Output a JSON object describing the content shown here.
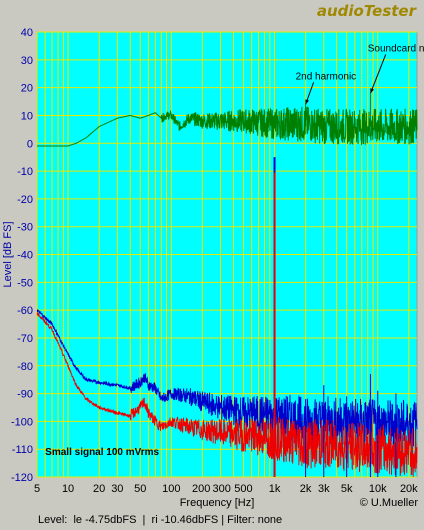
{
  "app": {
    "brand": "audioTester"
  },
  "status": {
    "text": "Level:  le -4.75dbFS  |  ri -10.46dbFS | Filter: none"
  },
  "chart_data": {
    "type": "line",
    "title": "",
    "xlabel": "Frequency [Hz]",
    "ylabel": "Level [dB FS]",
    "x_scale": "log",
    "xlim": [
      5,
      24000
    ],
    "ylim": [
      -120,
      40
    ],
    "grid": true,
    "y_ticks": [
      40,
      30,
      20,
      10,
      0,
      -10,
      -20,
      -30,
      -40,
      -50,
      -60,
      -70,
      -80,
      -90,
      -100,
      -110,
      -120
    ],
    "x_ticks": [
      {
        "value": 5,
        "label": "5"
      },
      {
        "value": 10,
        "label": "10"
      },
      {
        "value": 20,
        "label": "20"
      },
      {
        "value": 30,
        "label": "30"
      },
      {
        "value": 50,
        "label": "50"
      },
      {
        "value": 100,
        "label": "100"
      },
      {
        "value": 200,
        "label": "200"
      },
      {
        "value": 300,
        "label": "300"
      },
      {
        "value": 500,
        "label": "500"
      },
      {
        "value": 1000,
        "label": "1k"
      },
      {
        "value": 2000,
        "label": "2k"
      },
      {
        "value": 3000,
        "label": "3k"
      },
      {
        "value": 5000,
        "label": "5k"
      },
      {
        "value": 10000,
        "label": "10k"
      },
      {
        "value": 20000,
        "label": "20k"
      }
    ],
    "annotations": [
      {
        "text": "Soundcard nonlinearity",
        "x": 8000,
        "y": 33,
        "arrow_to": [
          8500,
          18
        ]
      },
      {
        "text": "2nd harmonic",
        "x": 1600,
        "y": 23,
        "arrow_to": [
          2000,
          14
        ]
      },
      {
        "text": "Small signal  100 mVrms",
        "x": 6,
        "y": -112
      }
    ],
    "copyright": "© U.Mueller",
    "series": [
      {
        "color": "#008000",
        "x": [
          5,
          8,
          10,
          12,
          15,
          20,
          30,
          40,
          50,
          60,
          70,
          80,
          90,
          100,
          120,
          150,
          200,
          300,
          500,
          1000,
          2000,
          3000,
          5000,
          10000,
          20000
        ],
        "y": [
          -1,
          -1,
          -1,
          0,
          2,
          6,
          9,
          10,
          9,
          10,
          11,
          9,
          10,
          10,
          6,
          9,
          8,
          8,
          8,
          7,
          7,
          6,
          6,
          6,
          6
        ]
      },
      {
        "color": "#0000cc",
        "x": [
          5,
          7,
          10,
          12,
          15,
          20,
          30,
          40,
          50,
          55,
          60,
          70,
          80,
          100,
          150,
          200,
          300,
          500,
          1000,
          2000,
          3000,
          5000,
          10000,
          20000
        ],
        "y": [
          -60,
          -65,
          -76,
          -81,
          -85,
          -86,
          -87,
          -88,
          -86,
          -84,
          -87,
          -88,
          -92,
          -90,
          -91,
          -93,
          -95,
          -97,
          -98,
          -100,
          -100,
          -100,
          -101,
          -101
        ]
      },
      {
        "color": "#ee0000",
        "x": [
          5,
          7,
          10,
          12,
          15,
          20,
          30,
          40,
          50,
          55,
          60,
          70,
          80,
          100,
          150,
          200,
          300,
          500,
          1000,
          2000,
          3000,
          5000,
          10000,
          20000
        ],
        "y": [
          -61,
          -67,
          -80,
          -87,
          -92,
          -95,
          -97,
          -98,
          -95,
          -93,
          -97,
          -100,
          -102,
          -100,
          -102,
          -103,
          -104,
          -105,
          -106,
          -108,
          -108,
          -109,
          -110,
          -111
        ]
      }
    ],
    "peaks": [
      {
        "x": 1000,
        "y": -5,
        "color": "#0000cc"
      },
      {
        "x": 1000,
        "y": -10.5,
        "color": "#ee0000"
      },
      {
        "x": 2000,
        "y": -92,
        "color": "#0000cc"
      },
      {
        "x": 3000,
        "y": -87,
        "color": "#0000cc"
      },
      {
        "x": 5000,
        "y": -91,
        "color": "#0000cc"
      },
      {
        "x": 8500,
        "y": -83,
        "color": "#0000cc"
      },
      {
        "x": 10000,
        "y": -89,
        "color": "#0000cc"
      },
      {
        "x": 15000,
        "y": -90,
        "color": "#0000cc"
      },
      {
        "x": 2000,
        "y": 14,
        "color": "#008000"
      },
      {
        "x": 8500,
        "y": 18,
        "color": "#008000"
      }
    ],
    "colors": {
      "plot_background": "#00ffff",
      "grid": "#e8e800",
      "frame": "#9a9a9a",
      "axis_labels": "#0000aa",
      "annotation_text": "#000000"
    }
  }
}
